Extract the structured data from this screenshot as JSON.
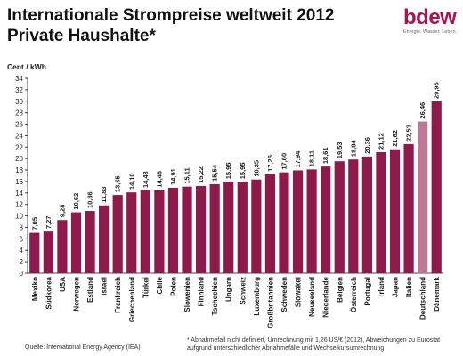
{
  "header": {
    "title_line1": "Internationale Strompreise weltweit 2012",
    "title_line2": "Private Haushalte*"
  },
  "logo": {
    "word": "bdew",
    "tagline": "Energie. Wasser. Leben."
  },
  "colors": {
    "bar": "#8e1a4b",
    "bar_highlight": "#c07898",
    "axis": "#444444"
  },
  "chart_data": {
    "type": "bar",
    "title": "Internationale Strompreise weltweit 2012",
    "subtitle": "Private Haushalte*",
    "ylabel": "Cent / kWh",
    "xlabel": "",
    "ylim": [
      0,
      34
    ],
    "yticks": [
      0,
      2,
      4,
      6,
      8,
      10,
      12,
      14,
      16,
      18,
      20,
      22,
      24,
      26,
      28,
      30,
      32,
      34
    ],
    "grid": false,
    "categories": [
      "Mexiko",
      "Südkorea",
      "USA",
      "Norwegen",
      "Estland",
      "Israel",
      "Frankreich",
      "Griechenland",
      "Türkei",
      "Chile",
      "Polen",
      "Slowenien",
      "Finnland",
      "Tschechien",
      "Ungarn",
      "Schweiz",
      "Luxemburg",
      "Großbritannien",
      "Schweden",
      "Slowakei",
      "Neuseeland",
      "Niederlande",
      "Belgien",
      "Österreich",
      "Portugal",
      "Irland",
      "Japan",
      "Italien",
      "Deutschland",
      "Dänemark"
    ],
    "values": [
      7.05,
      7.27,
      9.28,
      10.62,
      10.86,
      11.83,
      13.65,
      14.1,
      14.43,
      14.48,
      14.91,
      15.11,
      15.22,
      15.54,
      15.95,
      15.95,
      16.35,
      17.25,
      17.6,
      17.94,
      18.11,
      18.61,
      19.53,
      19.84,
      20.36,
      21.12,
      21.62,
      22.53,
      26.46,
      29.96
    ],
    "value_labels": [
      "7,05",
      "7,27",
      "9,28",
      "10,62",
      "10,86",
      "11,83",
      "13,65",
      "14,10",
      "14,43",
      "14,48",
      "14,91",
      "15,11",
      "15,22",
      "15,54",
      "15,95",
      "15,95",
      "16,35",
      "17,25",
      "17,60",
      "17,94",
      "18,11",
      "18,61",
      "19,53",
      "19,84",
      "20,36",
      "21,12",
      "21,62",
      "22,53",
      "26,46",
      "29,96"
    ],
    "highlight": [
      "Deutschland"
    ]
  },
  "footer": {
    "source": "Quelle: International Energy Agency (IEA)",
    "footnote": "* Abnahmefall nicht definiert, Umrechnung mit 1,26 US/€ (2012), Abweichungen zu Eurostat aufgrund unterschiedlicher Abnahmefälle und Wechselkursumrechnung"
  }
}
